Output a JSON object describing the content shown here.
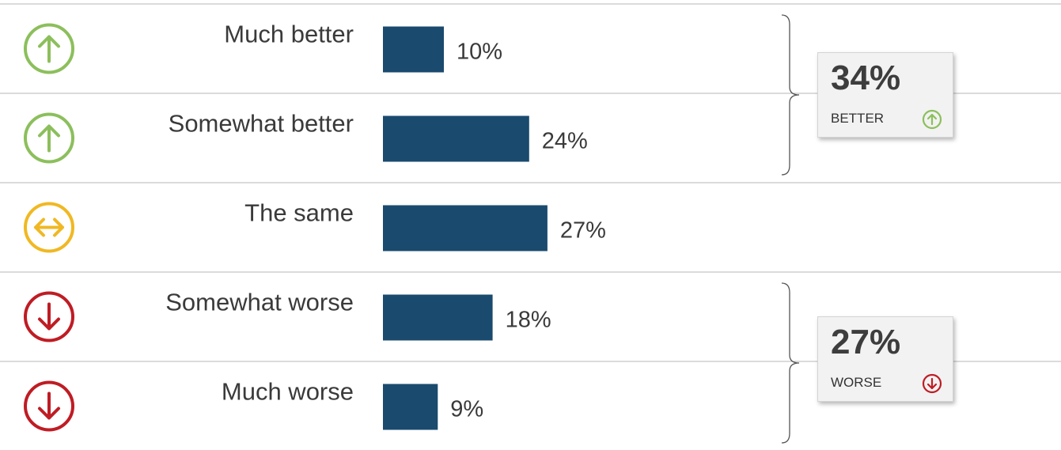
{
  "colors": {
    "bar": "#1a4a6e",
    "better": "#8cbf5c",
    "same": "#f0b823",
    "worse": "#bf1c24",
    "gridline": "#b7b7b7",
    "text": "#3a3a3a"
  },
  "chart_data": {
    "type": "bar",
    "orientation": "horizontal",
    "categories": [
      "Much better",
      "Somewhat better",
      "The same",
      "Somewhat worse",
      "Much worse"
    ],
    "values": [
      10,
      24,
      27,
      18,
      9
    ],
    "value_labels": [
      "10%",
      "24%",
      "27%",
      "18%",
      "9%"
    ],
    "category_icons": [
      "arrow-up-icon",
      "arrow-up-icon",
      "arrow-left-right-icon",
      "arrow-down-icon",
      "arrow-down-icon"
    ],
    "category_icon_colors": [
      "better",
      "better",
      "same",
      "worse",
      "worse"
    ],
    "summaries": [
      {
        "value": "34%",
        "label": "BETTER",
        "icon": "arrow-up-icon",
        "color": "better",
        "groups": [
          0,
          1
        ]
      },
      {
        "value": "27%",
        "label": "WORSE",
        "icon": "arrow-down-icon",
        "color": "worse",
        "groups": [
          3,
          4
        ]
      }
    ]
  }
}
